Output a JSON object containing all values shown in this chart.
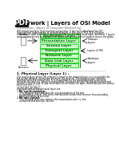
{
  "title": "rwork | Layers of OSI Model",
  "pdf_label": "PDF",
  "prerequisite_line": "Prerequisite : Basics of Computer Networking",
  "intro_lines": [
    "OSI stands for Open Systems Interconnection. It has been developed by ISO –",
    "International Organization of Standardization, in the year 1974. It is a 7-layer",
    "architecture with each layer having specific functionality to perform. All these 7 layers",
    "work collaboratively to transmit the data from one person to another across the globe."
  ],
  "layers": [
    "Application Layer",
    "Presentation Layer",
    "Session Layer",
    "Transport Layer",
    "Network Layer",
    "Data Link Layer",
    "Physical Layer"
  ],
  "layer_facecolor": "#ccffcc",
  "layer_edgecolor": "#33cc33",
  "layer_text_color": "#006600",
  "right_label_top": "Software\nLayers",
  "right_label_mid": "Layers of OSI",
  "right_label_bot": "Hardware\nLayers",
  "sender_label": "Sender",
  "receiver_label": "Receiver",
  "section_title": "1. Physical Layer (Layer 1) :",
  "section_lines": [
    "The lowest layer of the OSI reference model is the physical layer. It is responsible for",
    "the actual physical connection between the devices. The physical layer contains",
    "information in the form of bits. It is responsible for the actual physical connection",
    "between the devices. When receiving data, this layer will get the signal received and",
    "convert it into 0s and 1s and send them to the Data Link layer, which will put the frames",
    "back together."
  ],
  "sub_text": "[ 1s | 0s | 1s | 0s ]",
  "func_title": "The functions of the physical layer are:",
  "func1_bold": "Bit synchronization:",
  "func1_lines": [
    " The physical layer provides the synchronization of the bits",
    "by providing a clock. This clock controls both sender and receiver thus providing",
    "synchronization at bit level."
  ],
  "func2_bold": "Bit rate control:",
  "func2_lines": [
    " The Physical layer also defines the transmission rate i.e. the",
    "number of bits sent per second."
  ],
  "bg_color": "#ffffff",
  "pdf_bg": "#1a1a1a",
  "pdf_color": "#ffffff"
}
